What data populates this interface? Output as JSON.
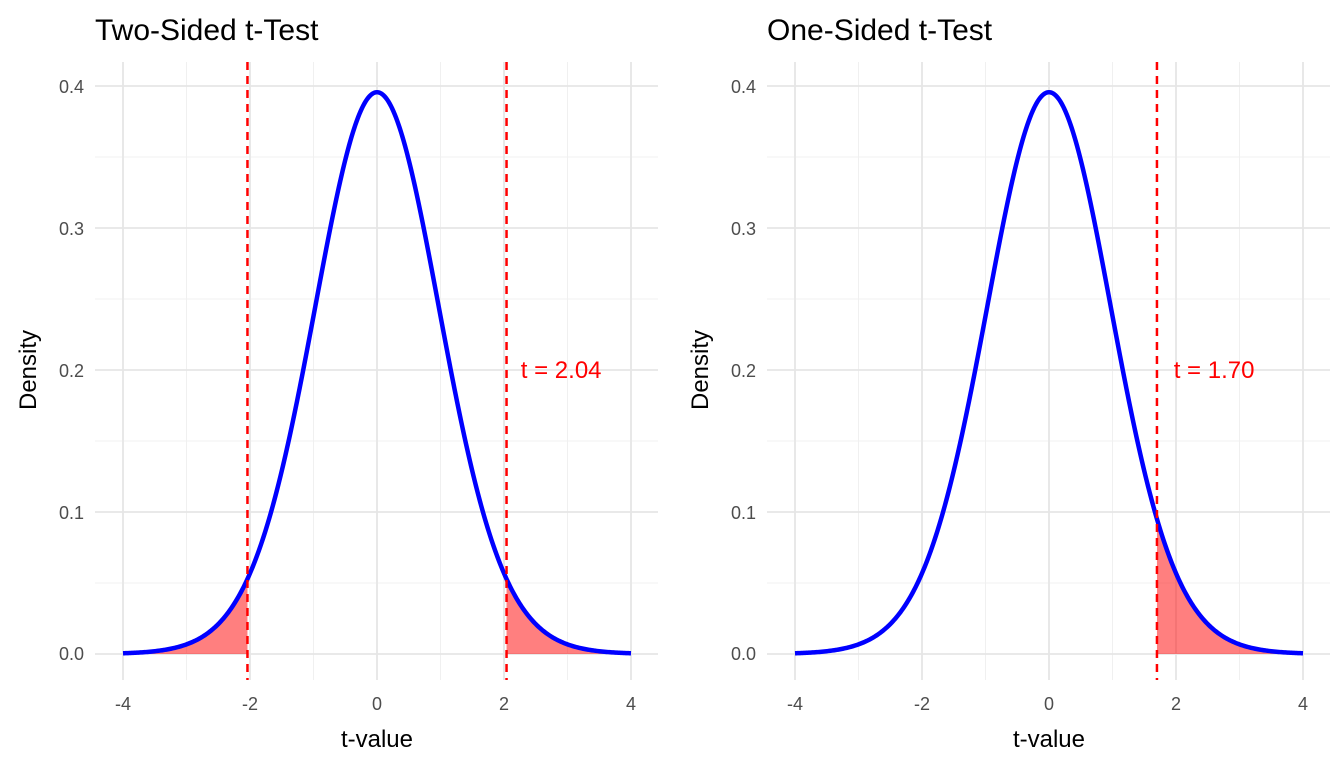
{
  "chart_data": [
    {
      "type": "area",
      "title": "Two-Sided t-Test",
      "xlabel": "t-value",
      "ylabel": "Density",
      "xlim": [
        -4,
        4
      ],
      "ylim": [
        0,
        0.4
      ],
      "x_ticks": [
        "-4",
        "-2",
        "0",
        "2",
        "4"
      ],
      "y_ticks": [
        "0.0",
        "0.1",
        "0.2",
        "0.3",
        "0.4"
      ],
      "grid": true,
      "distribution": {
        "name": "t",
        "df": 30
      },
      "curve_color": "#0000FF",
      "critical_values": [
        -2.04,
        2.04
      ],
      "critical_line_color": "#FF0000",
      "shaded_regions": [
        {
          "from": -4,
          "to": -2.04
        },
        {
          "from": 2.04,
          "to": 4
        }
      ],
      "shade_color": "#FF0000",
      "annotation": {
        "text": "t = 2.04",
        "x": 2.9,
        "y": 0.2,
        "color": "#FF0000"
      }
    },
    {
      "type": "area",
      "title": "One-Sided t-Test",
      "xlabel": "t-value",
      "ylabel": "Density",
      "xlim": [
        -4,
        4
      ],
      "ylim": [
        0,
        0.4
      ],
      "x_ticks": [
        "-4",
        "-2",
        "0",
        "2",
        "4"
      ],
      "y_ticks": [
        "0.0",
        "0.1",
        "0.2",
        "0.3",
        "0.4"
      ],
      "grid": true,
      "distribution": {
        "name": "t",
        "df": 30
      },
      "curve_color": "#0000FF",
      "critical_values": [
        1.7
      ],
      "critical_line_color": "#FF0000",
      "shaded_regions": [
        {
          "from": 1.7,
          "to": 4
        }
      ],
      "shade_color": "#FF0000",
      "annotation": {
        "text": "t = 1.70",
        "x": 2.6,
        "y": 0.2,
        "color": "#FF0000"
      }
    }
  ]
}
